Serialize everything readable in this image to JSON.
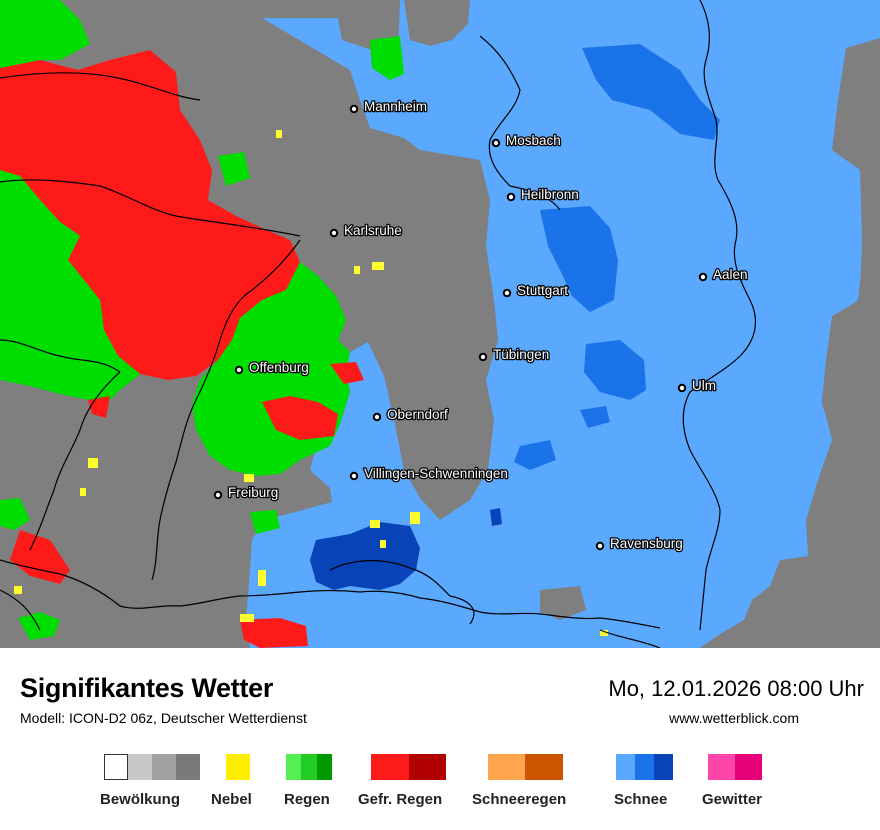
{
  "map": {
    "cities": [
      {
        "name": "Mannheim"
      },
      {
        "name": "Mosbach"
      },
      {
        "name": "Heilbronn"
      },
      {
        "name": "Karlsruhe"
      },
      {
        "name": "Aalen"
      },
      {
        "name": "Stuttgart"
      },
      {
        "name": "Tübingen"
      },
      {
        "name": "Offenburg"
      },
      {
        "name": "Ulm"
      },
      {
        "name": "Oberndorf"
      },
      {
        "name": "Villingen-Schwenningen"
      },
      {
        "name": "Freiburg"
      },
      {
        "name": "Ravensburg"
      }
    ],
    "colors": {
      "cloud": "#7f7f7f",
      "rain": "#00dd00",
      "freezing_rain": "#ff1a1a",
      "snow": "#5aa9ff",
      "heavy_snow": "#0a6ee0",
      "very_heavy_snow": "#0844b8",
      "fog": "#ffff30",
      "border": "#000000"
    }
  },
  "header": {
    "title": "Signifikantes Wetter",
    "model": "Modell: ICON-D2 06z, Deutscher Wetterdienst",
    "datetime": "Mo, 12.01.2026 08:00 Uhr",
    "website": "www.wetterblick.com"
  },
  "legend": [
    {
      "label": "Bewölkung",
      "colors": [
        "#ffffff",
        "#c8c8c8",
        "#a0a0a0",
        "#7a7a7a"
      ]
    },
    {
      "label": "Nebel",
      "colors": [
        "#ffee00"
      ]
    },
    {
      "label": "Regen",
      "colors": [
        "#55ee55",
        "#22cc22",
        "#009900"
      ]
    },
    {
      "label": "Gefr. Regen",
      "colors": [
        "#ff1a1a",
        "#b00000"
      ]
    },
    {
      "label": "Schneeregen",
      "colors": [
        "#ffa550",
        "#cc5500"
      ]
    },
    {
      "label": "Schnee",
      "colors": [
        "#5aa9ff",
        "#1a73e8",
        "#0844b8"
      ]
    },
    {
      "label": "Gewitter",
      "colors": [
        "#ff44aa",
        "#e6007a"
      ]
    }
  ]
}
